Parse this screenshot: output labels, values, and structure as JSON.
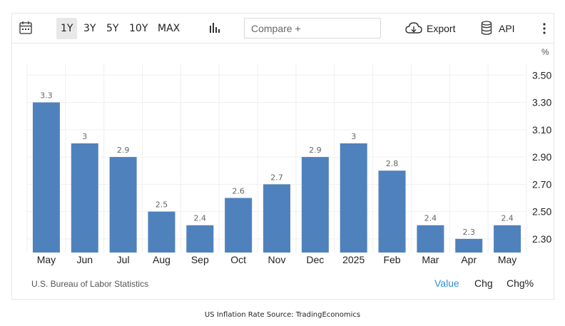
{
  "toolbar": {
    "calendar_icon": "calendar-icon",
    "ranges": [
      "1Y",
      "3Y",
      "5Y",
      "10Y",
      "MAX"
    ],
    "active_range": "1Y",
    "chart_type_icon": "bar-chart-icon",
    "compare_placeholder": "Compare +",
    "export_icon": "cloud-download-icon",
    "export_label": "Export",
    "api_icon": "database-icon",
    "api_label": "API",
    "more_icon": "vertical-dots-icon"
  },
  "chart_data": {
    "type": "bar",
    "categories": [
      "May",
      "Jun",
      "Jul",
      "Aug",
      "Sep",
      "Oct",
      "Nov",
      "Dec",
      "2025",
      "Feb",
      "Mar",
      "Apr",
      "May"
    ],
    "values": [
      3.3,
      3.0,
      2.9,
      2.5,
      2.4,
      2.6,
      2.7,
      2.9,
      3.0,
      2.8,
      2.4,
      2.3,
      2.4
    ],
    "data_labels": [
      "3.3",
      "3",
      "2.9",
      "2.5",
      "2.4",
      "2.6",
      "2.7",
      "2.9",
      "3",
      "2.8",
      "2.4",
      "2.3",
      "2.4"
    ],
    "y_unit": "%",
    "y_ticks": [
      "2.30",
      "2.50",
      "2.70",
      "2.90",
      "3.10",
      "3.30",
      "3.50"
    ],
    "ylim": [
      2.2,
      3.58
    ],
    "y_axis_position": "right",
    "grid": true,
    "bar_color": "#4f81bd"
  },
  "footer": {
    "source": "U.S. Bureau of Labor Statistics",
    "view_options": [
      "Value",
      "Chg",
      "Chg%"
    ],
    "active_view": "Value",
    "active_color": "#2f8fd8"
  },
  "caption": "US Inflation Rate Source: TradingEconomics"
}
